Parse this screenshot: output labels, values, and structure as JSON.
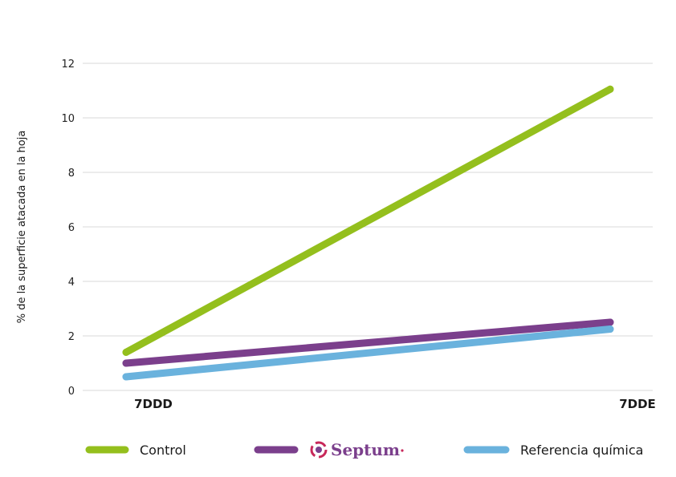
{
  "chart_data": {
    "type": "line",
    "title": "",
    "xlabel": "",
    "ylabel": "% de la superficie atacada en la hoja",
    "categories": [
      "7DDD",
      "7DDE"
    ],
    "ylim": [
      0,
      12
    ],
    "yticks": [
      0,
      2,
      4,
      6,
      8,
      10,
      12
    ],
    "grid": true,
    "legend_position": "bottom",
    "series": [
      {
        "name": "Control",
        "values": [
          1.4,
          11.05
        ],
        "color": "#94bf1d"
      },
      {
        "name": "Septum",
        "values": [
          1.0,
          2.5
        ],
        "color": "#7b3f8c",
        "legend_logo": "septum-logo-icon"
      },
      {
        "name": "Referencia química",
        "values": [
          0.5,
          2.25
        ],
        "color": "#6ab2dd"
      }
    ]
  }
}
